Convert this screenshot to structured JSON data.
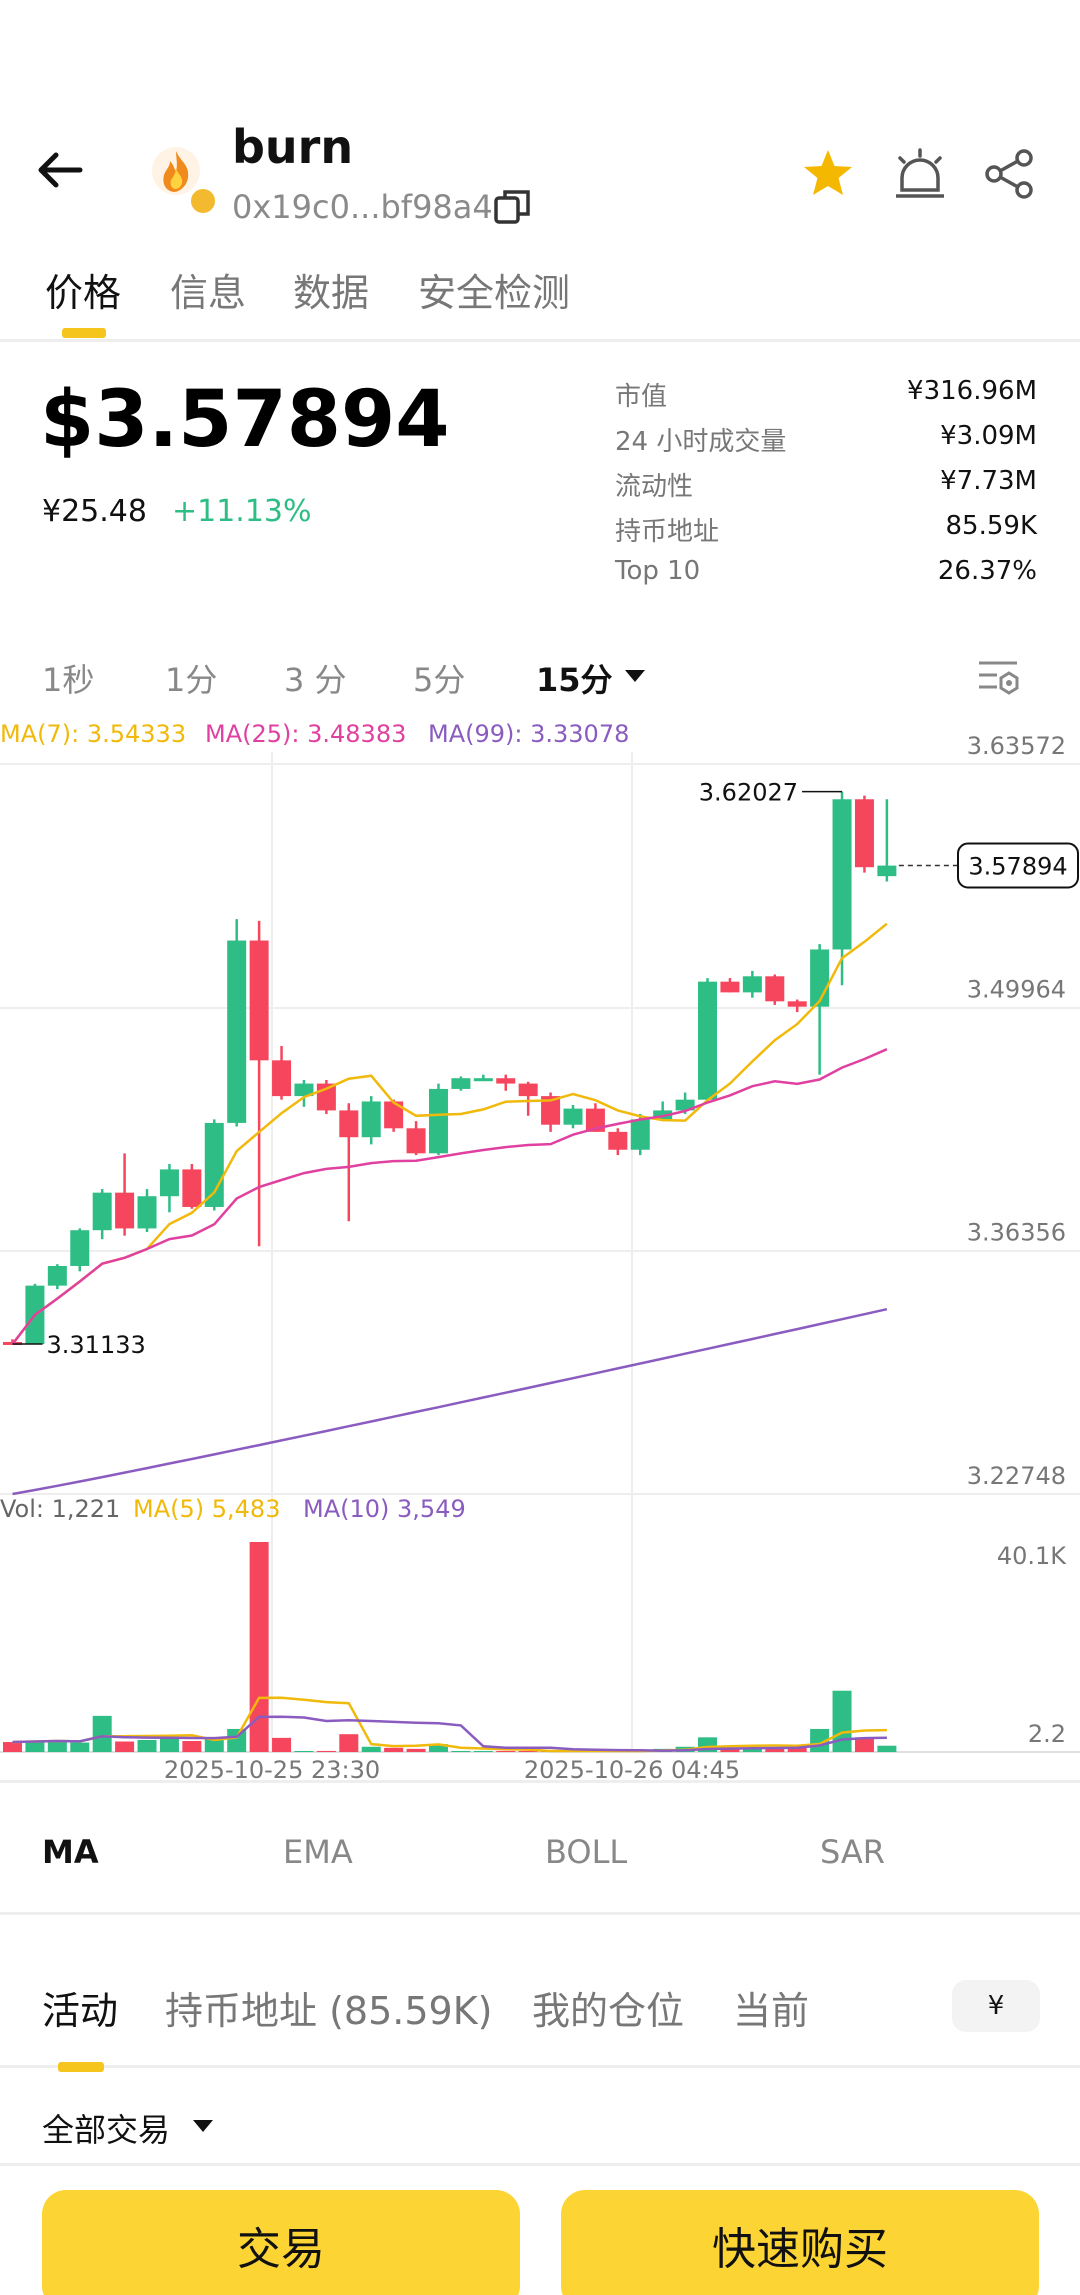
{
  "header": {
    "token_name": "burn",
    "token_address": "0x19c0...bf98a4",
    "icons": [
      "back-arrow-icon",
      "token-logo",
      "bnb-chain-icon",
      "copy-icon",
      "star-icon",
      "price-alert-icon",
      "share-icon"
    ],
    "star_color": "#f5b800"
  },
  "tabs": [
    "价格",
    "信息",
    "数据",
    "安全检测"
  ],
  "price": {
    "usd": "$3.57894",
    "cny": "¥25.48",
    "change": "+11.13%",
    "change_color": "#2ebd85"
  },
  "stats": [
    {
      "label": "市值",
      "value": "¥316.96M"
    },
    {
      "label": "24 小时成交量",
      "value": "¥3.09M"
    },
    {
      "label": "流动性",
      "value": "¥7.73M"
    },
    {
      "label": "持币地址",
      "value": "85.59K"
    },
    {
      "label": "Top 10",
      "value": "26.37%"
    }
  ],
  "intervals": [
    "1秒",
    "1分",
    "3 分",
    "5分",
    "15分"
  ],
  "active_interval": "15分",
  "chart": {
    "ma7": "MA(7): 3.54333",
    "ma25": "MA(25): 3.48383",
    "ma99": "MA(99): 3.33078",
    "y_ticks": [
      "3.63572",
      "3.49964",
      "3.36356",
      "3.22748"
    ],
    "high_label": "3.62027",
    "low_label": "3.31133",
    "current_price": "3.57894",
    "vol": "Vol: 1,221",
    "vol_ma5": "MA(5) 5,483",
    "vol_ma10": "MA(10) 3,549",
    "vol_ticks": [
      "40.1K",
      "2.2"
    ],
    "x_labels": [
      "2025-10-25 23:30",
      "2025-10-26 04:45"
    ],
    "up_color": "#2ebd85",
    "down_color": "#f6465d",
    "ma7_color": "#f0b90b",
    "ma25_color": "#e040a0",
    "ma99_color": "#8a5cc0"
  },
  "chart_data": {
    "type": "candlestick",
    "candles": [
      [
        3.3125,
        3.314,
        3.3113,
        3.3113
      ],
      [
        3.3113,
        3.345,
        3.3113,
        3.344
      ],
      [
        3.344,
        3.356,
        3.342,
        3.355
      ],
      [
        3.355,
        3.376,
        3.352,
        3.375
      ],
      [
        3.375,
        3.398,
        3.37,
        3.396
      ],
      [
        3.396,
        3.418,
        3.372,
        3.376
      ],
      [
        3.376,
        3.398,
        3.374,
        3.394
      ],
      [
        3.394,
        3.412,
        3.385,
        3.409
      ],
      [
        3.409,
        3.412,
        3.387,
        3.388
      ],
      [
        3.388,
        3.437,
        3.386,
        3.435
      ],
      [
        3.435,
        3.549,
        3.433,
        3.537
      ],
      [
        3.537,
        3.548,
        3.366,
        3.47
      ],
      [
        3.47,
        3.478,
        3.448,
        3.45
      ],
      [
        3.45,
        3.459,
        3.444,
        3.457
      ],
      [
        3.457,
        3.459,
        3.44,
        3.442
      ],
      [
        3.442,
        3.446,
        3.38,
        3.427
      ],
      [
        3.427,
        3.45,
        3.423,
        3.447
      ],
      [
        3.447,
        3.448,
        3.43,
        3.432
      ],
      [
        3.432,
        3.436,
        3.417,
        3.418
      ],
      [
        3.418,
        3.457,
        3.417,
        3.454
      ],
      [
        3.454,
        3.461,
        3.453,
        3.46
      ],
      [
        3.46,
        3.462,
        3.459,
        3.46
      ],
      [
        3.46,
        3.462,
        3.453,
        3.457
      ],
      [
        3.457,
        3.458,
        3.439,
        3.45
      ],
      [
        3.45,
        3.452,
        3.43,
        3.434
      ],
      [
        3.434,
        3.445,
        3.432,
        3.443
      ],
      [
        3.443,
        3.446,
        3.43,
        3.43
      ],
      [
        3.43,
        3.432,
        3.417,
        3.42
      ],
      [
        3.42,
        3.44,
        3.417,
        3.437
      ],
      [
        3.437,
        3.447,
        3.436,
        3.442
      ],
      [
        3.442,
        3.452,
        3.44,
        3.448
      ],
      [
        3.448,
        3.516,
        3.447,
        3.514
      ],
      [
        3.514,
        3.516,
        3.508,
        3.508
      ],
      [
        3.508,
        3.52,
        3.505,
        3.517
      ],
      [
        3.517,
        3.518,
        3.501,
        3.503
      ],
      [
        3.503,
        3.504,
        3.497,
        3.5
      ],
      [
        3.5,
        3.535,
        3.462,
        3.532
      ],
      [
        3.532,
        3.6203,
        3.512,
        3.616
      ],
      [
        3.616,
        3.618,
        3.575,
        3.578
      ],
      [
        3.573,
        3.616,
        3.57,
        3.5789
      ]
    ],
    "volumes": [
      1.9,
      2.1,
      2.3,
      1.8,
      6.9,
      2.0,
      2.3,
      2.6,
      2.1,
      2.5,
      4.4,
      40.1,
      2.7,
      0.2,
      0.2,
      3.4,
      1.0,
      0.8,
      0.6,
      1.5,
      0.2,
      0.2,
      0.2,
      0.2,
      0.2,
      0.2,
      0.2,
      0.2,
      0.2,
      0.6,
      1.0,
      2.8,
      0.8,
      0.8,
      0.8,
      0.8,
      4.4,
      11.7,
      2.8,
      1.2
    ],
    "y_range": [
      3.22748,
      3.63572
    ],
    "vol_unit": "K"
  },
  "indicators": [
    "MA",
    "EMA",
    "BOLL",
    "SAR"
  ],
  "activity_tabs": [
    "活动",
    "持币地址 (85.59K)",
    "我的仓位",
    "当前"
  ],
  "currency": "¥",
  "filter": "全部交易",
  "buttons": {
    "trade": "交易",
    "quick_buy": "快速购买"
  }
}
